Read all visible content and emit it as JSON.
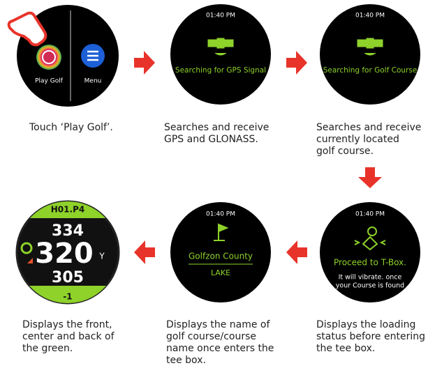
{
  "steps": [
    {
      "screen": {
        "play": "Play Golf",
        "menu": "Menu"
      },
      "caption": [
        "Touch ‘Play Golf’."
      ]
    },
    {
      "screen": {
        "time": "01:40 PM",
        "status": "Searching for GPS Signal"
      },
      "caption": [
        "Searches and receive",
        "GPS and GLONASS."
      ]
    },
    {
      "screen": {
        "time": "01:40 PM",
        "status": "Searching for Golf Course"
      },
      "caption": [
        "Searches and receive",
        "currently located",
        "golf course."
      ]
    },
    {
      "screen": {
        "time": "01:40 PM",
        "status": "Proceed to T-Box.",
        "note": [
          "It will vibrate. once",
          "your Course is found"
        ]
      },
      "caption": [
        "Displays the loading",
        "status before entering",
        "the tee box."
      ]
    },
    {
      "screen": {
        "time": "01:40 PM",
        "course": "Golfzon County",
        "sub_course": "LAKE"
      },
      "caption": [
        "Displays the name of",
        "golf course/course",
        "name  once enters the",
        "tee box."
      ]
    },
    {
      "screen": {
        "hole": "H01.P4",
        "back": "334",
        "center": "320",
        "unit": "Y",
        "front": "305",
        "score": "-1"
      },
      "caption": [
        "Displays the front,",
        "center and back of",
        "the green."
      ]
    }
  ]
}
